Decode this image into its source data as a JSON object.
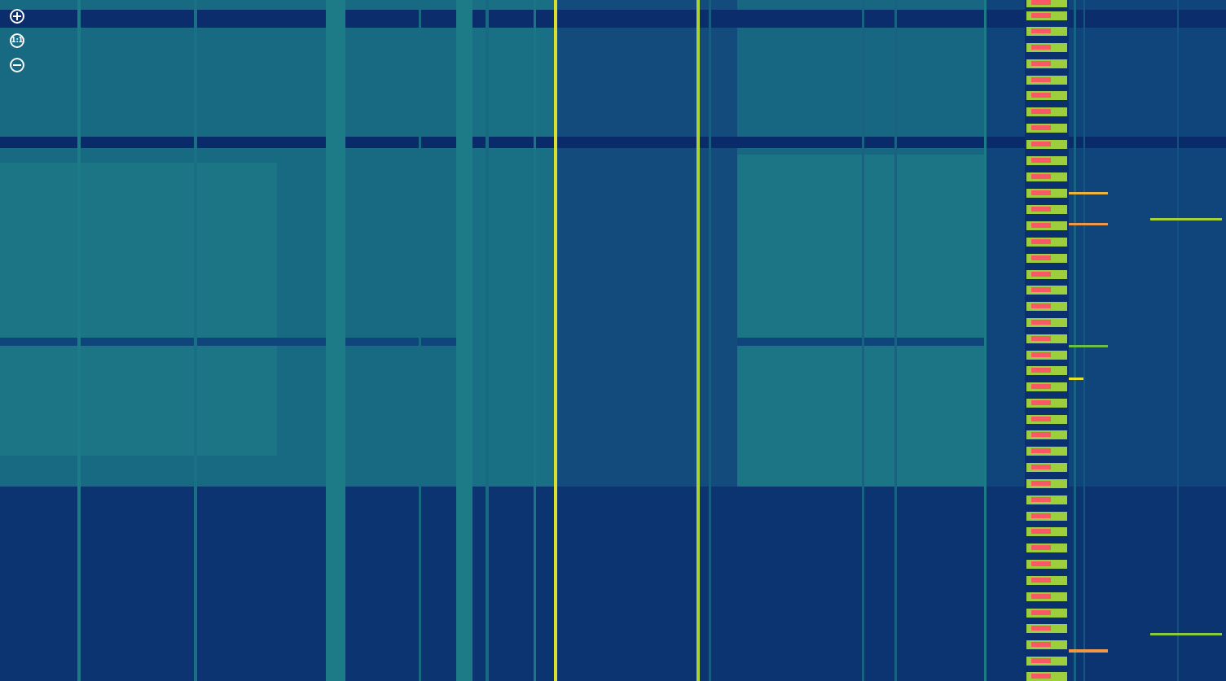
{
  "chart_data": {
    "type": "heatmap",
    "tick_labels": false,
    "grid": false,
    "xlim": [
      0,
      1505
    ],
    "ylim": [
      0,
      837
    ],
    "zlim": [
      0,
      100
    ],
    "color": [
      "#061a5c",
      "#0f3f7a",
      "#1c7b86",
      "#6cc04a",
      "#e6e22a",
      "#ff2a7a"
    ],
    "cells": [
      [
        0,
        1505,
        0,
        837,
        14
      ],
      [
        0,
        560,
        0,
        598,
        34
      ],
      [
        560,
        680,
        0,
        598,
        36
      ],
      [
        680,
        905,
        0,
        598,
        24
      ],
      [
        905,
        1210,
        0,
        598,
        33
      ],
      [
        905,
        1210,
        190,
        598,
        38
      ],
      [
        1210,
        1258,
        0,
        598,
        22
      ],
      [
        1312,
        1505,
        0,
        598,
        22
      ],
      [
        0,
        340,
        200,
        560,
        38
      ],
      [
        0,
        1258,
        12,
        34,
        10
      ],
      [
        1312,
        1505,
        12,
        34,
        10
      ],
      [
        0,
        1258,
        168,
        182,
        9
      ],
      [
        1312,
        1505,
        168,
        182,
        9
      ],
      [
        0,
        560,
        415,
        425,
        22
      ],
      [
        905,
        1210,
        415,
        425,
        22
      ],
      [
        95,
        99,
        0,
        837,
        40
      ],
      [
        238,
        242,
        0,
        837,
        36
      ],
      [
        400,
        424,
        0,
        837,
        40
      ],
      [
        514,
        517,
        0,
        837,
        34
      ],
      [
        560,
        580,
        0,
        837,
        40
      ],
      [
        596,
        600,
        0,
        837,
        34
      ],
      [
        655,
        658,
        0,
        837,
        38
      ],
      [
        680,
        684,
        0,
        837,
        78
      ],
      [
        855,
        859,
        0,
        837,
        70
      ],
      [
        870,
        873,
        0,
        837,
        30
      ],
      [
        1058,
        1061,
        0,
        837,
        32
      ],
      [
        1098,
        1101,
        0,
        837,
        32
      ],
      [
        1208,
        1211,
        0,
        837,
        40
      ],
      [
        1318,
        1321,
        0,
        837,
        32
      ],
      [
        1330,
        1332,
        0,
        837,
        28
      ],
      [
        1445,
        1447,
        0,
        837,
        26
      ],
      [
        1310,
        1360,
        236,
        239,
        85
      ],
      [
        1310,
        1360,
        274,
        277,
        88
      ],
      [
        1412,
        1500,
        268,
        271,
        70
      ],
      [
        1310,
        1360,
        798,
        802,
        88
      ],
      [
        1412,
        1500,
        778,
        781,
        65
      ],
      [
        1300,
        1330,
        464,
        467,
        80
      ],
      [
        1310,
        1360,
        424,
        427,
        60
      ],
      [
        1258,
        1312,
        0,
        837,
        12
      ],
      [
        1260,
        1310,
        0,
        9,
        68
      ],
      [
        1266,
        1290,
        0,
        6,
        95
      ],
      [
        1260,
        1310,
        14,
        25,
        68
      ],
      [
        1266,
        1290,
        16,
        22,
        95
      ],
      [
        1260,
        1310,
        33,
        44,
        68
      ],
      [
        1266,
        1290,
        35,
        41,
        95
      ],
      [
        1260,
        1310,
        53,
        64,
        68
      ],
      [
        1266,
        1290,
        55,
        61,
        95
      ],
      [
        1260,
        1310,
        73,
        84,
        68
      ],
      [
        1266,
        1290,
        75,
        81,
        95
      ],
      [
        1260,
        1310,
        93,
        104,
        68
      ],
      [
        1266,
        1290,
        95,
        101,
        95
      ],
      [
        1260,
        1310,
        112,
        123,
        68
      ],
      [
        1266,
        1290,
        114,
        120,
        95
      ],
      [
        1260,
        1310,
        132,
        143,
        68
      ],
      [
        1266,
        1290,
        134,
        140,
        95
      ],
      [
        1260,
        1310,
        152,
        163,
        68
      ],
      [
        1266,
        1290,
        154,
        160,
        95
      ],
      [
        1260,
        1310,
        172,
        183,
        68
      ],
      [
        1266,
        1290,
        174,
        180,
        95
      ],
      [
        1260,
        1310,
        192,
        203,
        68
      ],
      [
        1266,
        1290,
        194,
        200,
        95
      ],
      [
        1260,
        1310,
        212,
        223,
        68
      ],
      [
        1266,
        1290,
        214,
        220,
        95
      ],
      [
        1260,
        1310,
        232,
        243,
        68
      ],
      [
        1266,
        1290,
        234,
        240,
        95
      ],
      [
        1260,
        1310,
        252,
        263,
        68
      ],
      [
        1266,
        1290,
        254,
        260,
        95
      ],
      [
        1260,
        1310,
        272,
        283,
        68
      ],
      [
        1266,
        1290,
        274,
        280,
        95
      ],
      [
        1260,
        1310,
        292,
        303,
        68
      ],
      [
        1266,
        1290,
        294,
        300,
        95
      ],
      [
        1260,
        1310,
        312,
        323,
        68
      ],
      [
        1266,
        1290,
        314,
        320,
        95
      ],
      [
        1260,
        1310,
        332,
        343,
        68
      ],
      [
        1266,
        1290,
        334,
        340,
        95
      ],
      [
        1260,
        1310,
        351,
        362,
        68
      ],
      [
        1266,
        1290,
        353,
        359,
        95
      ],
      [
        1260,
        1310,
        371,
        382,
        68
      ],
      [
        1266,
        1290,
        373,
        379,
        95
      ],
      [
        1260,
        1310,
        391,
        402,
        68
      ],
      [
        1266,
        1290,
        393,
        399,
        95
      ],
      [
        1260,
        1310,
        411,
        422,
        68
      ],
      [
        1266,
        1290,
        413,
        419,
        95
      ],
      [
        1260,
        1310,
        431,
        442,
        68
      ],
      [
        1266,
        1290,
        433,
        439,
        95
      ],
      [
        1260,
        1310,
        450,
        461,
        68
      ],
      [
        1266,
        1290,
        452,
        458,
        95
      ],
      [
        1260,
        1310,
        470,
        481,
        68
      ],
      [
        1266,
        1290,
        472,
        478,
        95
      ],
      [
        1260,
        1310,
        490,
        501,
        68
      ],
      [
        1266,
        1290,
        492,
        498,
        95
      ],
      [
        1260,
        1310,
        510,
        521,
        68
      ],
      [
        1266,
        1290,
        512,
        518,
        95
      ],
      [
        1260,
        1310,
        529,
        540,
        68
      ],
      [
        1266,
        1290,
        531,
        537,
        95
      ],
      [
        1260,
        1310,
        549,
        560,
        68
      ],
      [
        1266,
        1290,
        551,
        557,
        95
      ],
      [
        1260,
        1310,
        569,
        580,
        68
      ],
      [
        1266,
        1290,
        571,
        577,
        95
      ],
      [
        1260,
        1310,
        589,
        600,
        68
      ],
      [
        1266,
        1290,
        591,
        597,
        95
      ],
      [
        1260,
        1310,
        609,
        620,
        68
      ],
      [
        1266,
        1290,
        611,
        617,
        95
      ],
      [
        1260,
        1310,
        629,
        640,
        68
      ],
      [
        1266,
        1290,
        631,
        637,
        95
      ],
      [
        1260,
        1310,
        648,
        659,
        68
      ],
      [
        1266,
        1290,
        650,
        656,
        95
      ],
      [
        1260,
        1310,
        668,
        679,
        68
      ],
      [
        1266,
        1290,
        670,
        676,
        95
      ],
      [
        1260,
        1310,
        688,
        699,
        68
      ],
      [
        1266,
        1290,
        690,
        696,
        95
      ],
      [
        1260,
        1310,
        708,
        719,
        68
      ],
      [
        1266,
        1290,
        710,
        716,
        95
      ],
      [
        1260,
        1310,
        728,
        739,
        68
      ],
      [
        1266,
        1290,
        730,
        736,
        95
      ],
      [
        1260,
        1310,
        748,
        759,
        68
      ],
      [
        1266,
        1290,
        750,
        756,
        95
      ],
      [
        1260,
        1310,
        767,
        778,
        68
      ],
      [
        1266,
        1290,
        769,
        775,
        95
      ],
      [
        1260,
        1310,
        787,
        798,
        68
      ],
      [
        1266,
        1290,
        789,
        795,
        95
      ],
      [
        1260,
        1310,
        807,
        818,
        68
      ],
      [
        1266,
        1290,
        809,
        815,
        95
      ],
      [
        1260,
        1310,
        826,
        837,
        68
      ],
      [
        1266,
        1290,
        828,
        834,
        95
      ]
    ]
  },
  "controls": {
    "reset_label": "1:1"
  }
}
